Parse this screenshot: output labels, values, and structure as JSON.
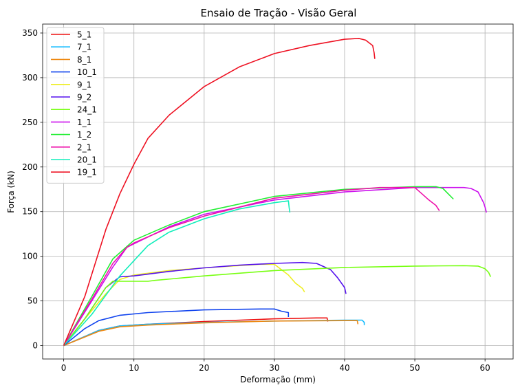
{
  "chart_data": {
    "type": "line",
    "title": "Ensaio de Tração - Visão Geral",
    "xlabel": "Deformação (mm)",
    "ylabel": "Força (kN)",
    "xlim": [
      -3,
      64
    ],
    "ylim": [
      -15,
      360
    ],
    "xticks": [
      0,
      10,
      20,
      30,
      40,
      50,
      60
    ],
    "yticks": [
      0,
      50,
      100,
      150,
      200,
      250,
      300,
      350
    ],
    "grid": true,
    "legend_position": "top-left",
    "series": [
      {
        "name": "5_1",
        "color": "#ee1111",
        "points": [
          [
            0,
            0
          ],
          [
            5,
            17
          ],
          [
            8,
            22
          ],
          [
            12,
            24
          ],
          [
            20,
            27
          ],
          [
            30,
            30
          ],
          [
            36,
            31
          ],
          [
            37.5,
            31
          ],
          [
            37.6,
            27
          ]
        ]
      },
      {
        "name": "7_1",
        "color": "#11bbff",
        "points": [
          [
            0,
            0
          ],
          [
            5,
            17
          ],
          [
            8,
            22
          ],
          [
            12,
            24
          ],
          [
            20,
            26
          ],
          [
            30,
            27.5
          ],
          [
            40,
            28.5
          ],
          [
            42.5,
            28.5
          ],
          [
            42.8,
            26
          ],
          [
            42.8,
            23
          ]
        ]
      },
      {
        "name": "8_1",
        "color": "#ee8811",
        "points": [
          [
            0,
            0
          ],
          [
            5,
            16
          ],
          [
            8,
            21
          ],
          [
            12,
            23
          ],
          [
            20,
            25.5
          ],
          [
            30,
            27.5
          ],
          [
            40,
            28
          ],
          [
            41.8,
            28
          ],
          [
            41.9,
            24
          ]
        ]
      },
      {
        "name": "10_1",
        "color": "#1144ee",
        "points": [
          [
            0,
            0
          ],
          [
            3,
            19
          ],
          [
            5,
            28
          ],
          [
            8,
            34
          ],
          [
            12,
            37
          ],
          [
            20,
            40
          ],
          [
            28,
            41
          ],
          [
            30,
            41
          ],
          [
            31,
            38.5
          ],
          [
            32,
            37
          ],
          [
            32,
            32
          ]
        ]
      },
      {
        "name": "9_1",
        "color": "#eeee22",
        "points": [
          [
            0,
            0
          ],
          [
            3,
            30
          ],
          [
            6,
            58
          ],
          [
            8,
            74
          ],
          [
            10,
            79
          ],
          [
            15,
            84
          ],
          [
            20,
            87
          ],
          [
            28,
            91
          ],
          [
            30,
            91
          ],
          [
            32,
            79
          ],
          [
            33,
            70
          ],
          [
            34,
            64
          ],
          [
            34.3,
            60
          ]
        ]
      },
      {
        "name": "9_2",
        "color": "#5511ee",
        "points": [
          [
            0,
            0
          ],
          [
            3,
            30
          ],
          [
            6,
            65
          ],
          [
            8,
            77
          ],
          [
            10,
            78
          ],
          [
            15,
            83
          ],
          [
            20,
            87
          ],
          [
            25,
            90
          ],
          [
            30,
            92
          ],
          [
            34,
            93
          ],
          [
            36,
            92
          ],
          [
            38,
            85
          ],
          [
            39,
            76
          ],
          [
            40,
            65
          ],
          [
            40.2,
            58
          ]
        ]
      },
      {
        "name": "24_1",
        "color": "#77ff11",
        "points": [
          [
            0,
            0
          ],
          [
            3,
            30
          ],
          [
            6,
            65
          ],
          [
            7,
            72
          ],
          [
            12,
            72
          ],
          [
            13,
            73
          ],
          [
            20,
            78
          ],
          [
            30,
            84
          ],
          [
            40,
            87.5
          ],
          [
            50,
            89
          ],
          [
            57,
            89.5
          ],
          [
            59,
            89
          ],
          [
            60,
            86
          ],
          [
            60.5,
            82
          ],
          [
            60.8,
            77
          ]
        ]
      },
      {
        "name": "1_1",
        "color": "#cc11ee",
        "points": [
          [
            0,
            0
          ],
          [
            4,
            50
          ],
          [
            7,
            88
          ],
          [
            9,
            110
          ],
          [
            10,
            114
          ],
          [
            15,
            133
          ],
          [
            20,
            147
          ],
          [
            30,
            163
          ],
          [
            40,
            172
          ],
          [
            50,
            177
          ],
          [
            57,
            177
          ],
          [
            58,
            176
          ],
          [
            59,
            172
          ],
          [
            59.8,
            160
          ],
          [
            60,
            155
          ],
          [
            60.2,
            149
          ]
        ]
      },
      {
        "name": "1_2",
        "color": "#22ee33",
        "points": [
          [
            0,
            0
          ],
          [
            4,
            55
          ],
          [
            7,
            97
          ],
          [
            10,
            118
          ],
          [
            15,
            135
          ],
          [
            20,
            150
          ],
          [
            30,
            167
          ],
          [
            40,
            175
          ],
          [
            50,
            178
          ],
          [
            53,
            178
          ],
          [
            54,
            176
          ],
          [
            55,
            168
          ],
          [
            55.5,
            164
          ]
        ]
      },
      {
        "name": "2_1",
        "color": "#ee11aa",
        "points": [
          [
            0,
            0
          ],
          [
            4,
            52
          ],
          [
            7,
            92
          ],
          [
            9,
            110
          ],
          [
            10,
            115
          ],
          [
            15,
            132
          ],
          [
            20,
            145
          ],
          [
            30,
            165
          ],
          [
            40,
            174
          ],
          [
            45,
            177
          ],
          [
            50,
            177
          ],
          [
            51,
            170
          ],
          [
            52,
            163
          ],
          [
            53,
            157
          ],
          [
            53.5,
            151
          ]
        ]
      },
      {
        "name": "20_1",
        "color": "#11eebb",
        "points": [
          [
            0,
            0
          ],
          [
            4,
            35
          ],
          [
            8,
            78
          ],
          [
            10,
            95
          ],
          [
            12,
            112
          ],
          [
            15,
            127
          ],
          [
            20,
            142
          ],
          [
            25,
            153
          ],
          [
            30,
            160
          ],
          [
            32,
            162
          ],
          [
            32.1,
            155
          ],
          [
            32.2,
            149
          ]
        ]
      },
      {
        "name": "19_1",
        "color": "#ee1122",
        "points": [
          [
            0,
            0
          ],
          [
            3,
            55
          ],
          [
            6,
            130
          ],
          [
            8,
            170
          ],
          [
            10,
            203
          ],
          [
            12,
            232
          ],
          [
            15,
            258
          ],
          [
            20,
            290
          ],
          [
            25,
            312
          ],
          [
            30,
            327
          ],
          [
            35,
            336
          ],
          [
            40,
            343
          ],
          [
            42,
            344
          ],
          [
            43,
            342
          ],
          [
            44,
            336
          ],
          [
            44.2,
            328
          ],
          [
            44.3,
            321
          ]
        ]
      }
    ]
  }
}
